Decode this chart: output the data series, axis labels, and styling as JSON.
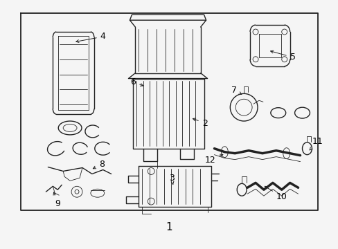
{
  "background": "#f5f5f5",
  "border_color": "#222222",
  "line_color": "#222222",
  "text_color": "#000000",
  "fig_width": 4.89,
  "fig_height": 3.6,
  "dpi": 100
}
